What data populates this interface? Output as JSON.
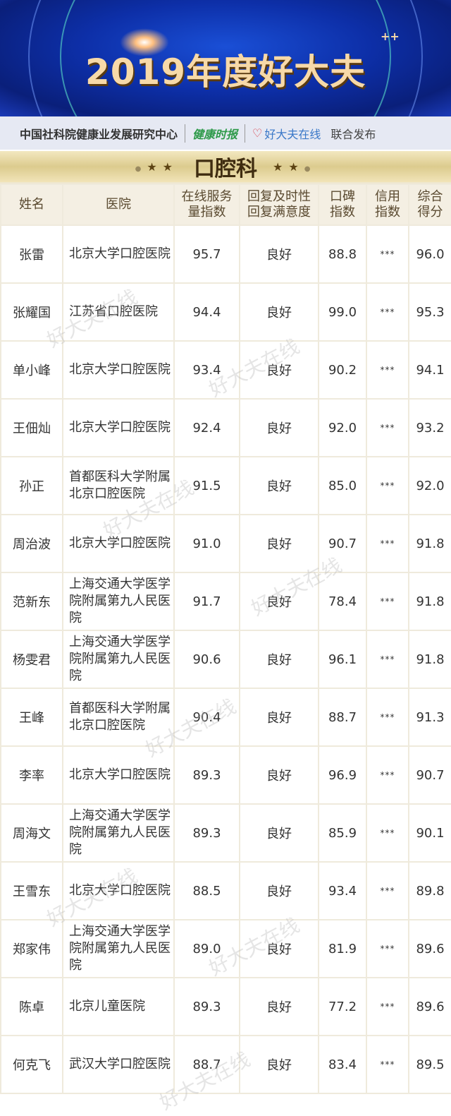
{
  "banner": {
    "title": "2019年度好大夫",
    "plus": "++"
  },
  "publisher": {
    "org": "中国社科院健康业发展研究中心",
    "jkb": "健康时报",
    "hdf": "好大夫在线",
    "joint": "联合发布"
  },
  "section": {
    "title": "口腔科"
  },
  "table": {
    "headers": [
      "姓名",
      "医院",
      "在线服务量指数",
      "回复及时性回复满意度",
      "口碑指数",
      "信用指数",
      "综合得分"
    ],
    "header_lines": [
      [
        "姓名"
      ],
      [
        "医院"
      ],
      [
        "在线服务",
        "量指数"
      ],
      [
        "回复及时性",
        "回复满意度"
      ],
      [
        "口碑",
        "指数"
      ],
      [
        "信用",
        "指数"
      ],
      [
        "综合",
        "得分"
      ]
    ],
    "rows": [
      [
        "张雷",
        "北京大学口腔医院",
        "95.7",
        "良好",
        "88.8",
        "***",
        "96.0"
      ],
      [
        "张耀国",
        "江苏省口腔医院",
        "94.4",
        "良好",
        "99.0",
        "***",
        "95.3"
      ],
      [
        "单小峰",
        "北京大学口腔医院",
        "93.4",
        "良好",
        "90.2",
        "***",
        "94.1"
      ],
      [
        "王佃灿",
        "北京大学口腔医院",
        "92.4",
        "良好",
        "92.0",
        "***",
        "93.2"
      ],
      [
        "孙正",
        "首都医科大学附属北京口腔医院",
        "91.5",
        "良好",
        "85.0",
        "***",
        "92.0"
      ],
      [
        "周治波",
        "北京大学口腔医院",
        "91.0",
        "良好",
        "90.7",
        "***",
        "91.8"
      ],
      [
        "范新东",
        "上海交通大学医学院附属第九人民医院",
        "91.7",
        "良好",
        "78.4",
        "***",
        "91.8"
      ],
      [
        "杨雯君",
        "上海交通大学医学院附属第九人民医院",
        "90.6",
        "良好",
        "96.1",
        "***",
        "91.8"
      ],
      [
        "王峰",
        "首都医科大学附属北京口腔医院",
        "90.4",
        "良好",
        "88.7",
        "***",
        "91.3"
      ],
      [
        "李率",
        "北京大学口腔医院",
        "89.3",
        "良好",
        "96.9",
        "***",
        "90.7"
      ],
      [
        "周海文",
        "上海交通大学医学院附属第九人民医院",
        "89.3",
        "良好",
        "85.9",
        "***",
        "90.1"
      ],
      [
        "王雪东",
        "北京大学口腔医院",
        "88.5",
        "良好",
        "93.4",
        "***",
        "89.8"
      ],
      [
        "郑家伟",
        "上海交通大学医学院附属第九人民医院",
        "89.0",
        "良好",
        "81.9",
        "***",
        "89.6"
      ],
      [
        "陈卓",
        "北京儿童医院",
        "89.3",
        "良好",
        "77.2",
        "***",
        "89.6"
      ],
      [
        "何克飞",
        "武汉大学口腔医院",
        "88.7",
        "良好",
        "83.4",
        "***",
        "89.5"
      ]
    ]
  },
  "watermark": "好大夫在线"
}
